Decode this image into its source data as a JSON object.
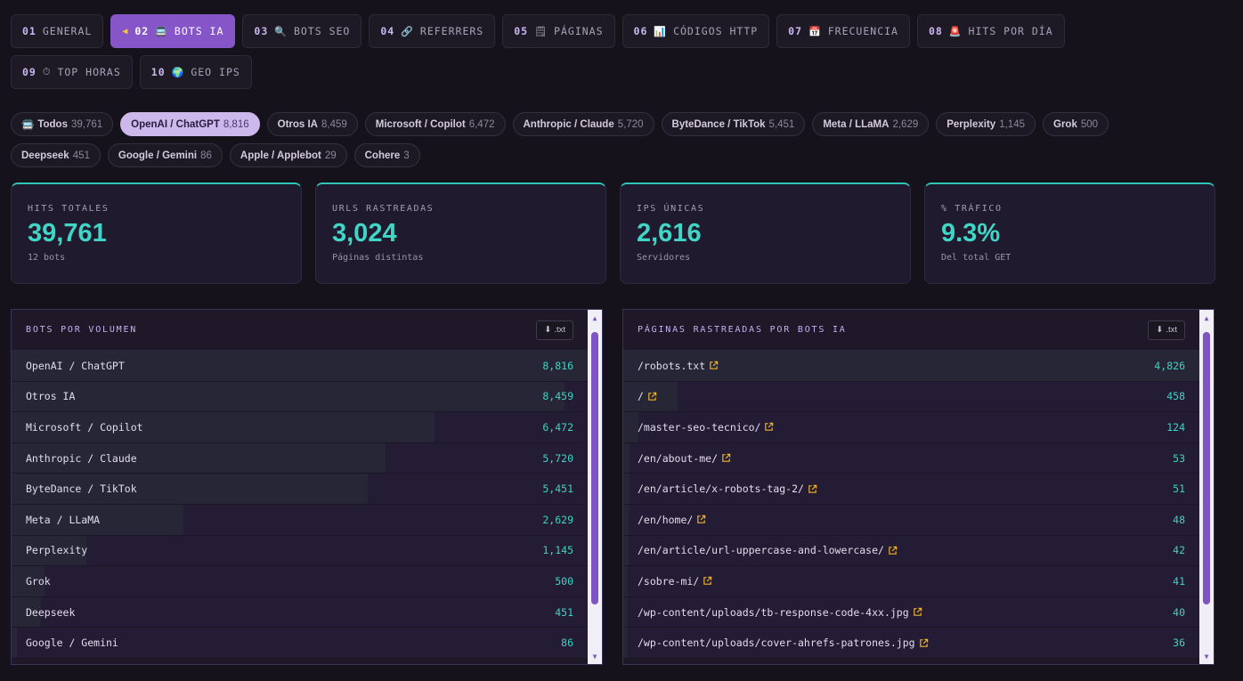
{
  "tabs": [
    {
      "num": "01",
      "icon": "",
      "label": "GENERAL",
      "active": false
    },
    {
      "num": "02",
      "icon": "🚍",
      "label": "BOTS IA",
      "active": true,
      "arrow": "◀"
    },
    {
      "num": "03",
      "icon": "🔍",
      "label": "BOTS SEO",
      "active": false
    },
    {
      "num": "04",
      "icon": "🔗",
      "label": "REFERRERS",
      "active": false
    },
    {
      "num": "05",
      "icon": "🗒",
      "label": "PÁGINAS",
      "active": false
    },
    {
      "num": "06",
      "icon": "📊",
      "label": "CÓDIGOS HTTP",
      "active": false
    },
    {
      "num": "07",
      "icon": "📅",
      "label": "FRECUENCIA",
      "active": false
    },
    {
      "num": "08",
      "icon": "🚨",
      "label": "HITS POR DÍA",
      "active": false
    },
    {
      "num": "09",
      "icon": "⏱",
      "label": "TOP HORAS",
      "active": false
    },
    {
      "num": "10",
      "icon": "🌍",
      "label": "GEO IPS",
      "active": false
    }
  ],
  "filters": [
    {
      "icon": "🚍",
      "label": "Todos",
      "count": "39,761",
      "active": false
    },
    {
      "label": "OpenAI / ChatGPT",
      "count": "8,816",
      "active": true
    },
    {
      "label": "Otros IA",
      "count": "8,459",
      "active": false
    },
    {
      "label": "Microsoft / Copilot",
      "count": "6,472",
      "active": false
    },
    {
      "label": "Anthropic / Claude",
      "count": "5,720",
      "active": false
    },
    {
      "label": "ByteDance / TikTok",
      "count": "5,451",
      "active": false
    },
    {
      "label": "Meta / LLaMA",
      "count": "2,629",
      "active": false
    },
    {
      "label": "Perplexity",
      "count": "1,145",
      "active": false
    },
    {
      "label": "Grok",
      "count": "500",
      "active": false
    },
    {
      "label": "Deepseek",
      "count": "451",
      "active": false
    },
    {
      "label": "Google / Gemini",
      "count": "86",
      "active": false
    },
    {
      "label": "Apple / Applebot",
      "count": "29",
      "active": false
    },
    {
      "label": "Cohere",
      "count": "3",
      "active": false
    }
  ],
  "stats": [
    {
      "label": "HITS TOTALES",
      "value": "39,761",
      "sub": "12 bots"
    },
    {
      "label": "URLS RASTREADAS",
      "value": "3,024",
      "sub": "Páginas distintas"
    },
    {
      "label": "IPS ÚNICAS",
      "value": "2,616",
      "sub": "Servidores"
    },
    {
      "label": "% TRÁFICO",
      "value": "9.3%",
      "sub": "Del total GET"
    }
  ],
  "bots_panel": {
    "title": "BOTS POR VOLUMEN",
    "download_label": ".txt",
    "download_icon": "⬇",
    "rows": [
      {
        "name": "OpenAI / ChatGPT",
        "count": "8,816",
        "share": 1.0
      },
      {
        "name": "Otros IA",
        "count": "8,459",
        "share": 0.96
      },
      {
        "name": "Microsoft / Copilot",
        "count": "6,472",
        "share": 0.734
      },
      {
        "name": "Anthropic / Claude",
        "count": "5,720",
        "share": 0.649
      },
      {
        "name": "ByteDance / TikTok",
        "count": "5,451",
        "share": 0.618
      },
      {
        "name": "Meta / LLaMA",
        "count": "2,629",
        "share": 0.298
      },
      {
        "name": "Perplexity",
        "count": "1,145",
        "share": 0.13
      },
      {
        "name": "Grok",
        "count": "500",
        "share": 0.057
      },
      {
        "name": "Deepseek",
        "count": "451",
        "share": 0.051
      },
      {
        "name": "Google / Gemini",
        "count": "86",
        "share": 0.01
      }
    ],
    "scroll": {
      "thumb_start": 0.02,
      "thumb_size": 0.85
    }
  },
  "pages_panel": {
    "title": "PÁGINAS RASTREADAS POR BOTS IA",
    "download_label": ".txt",
    "download_icon": "⬇",
    "rows": [
      {
        "name": "/robots.txt",
        "count": "4,826",
        "share": 1.0
      },
      {
        "name": "/",
        "count": "458",
        "share": 0.095
      },
      {
        "name": "/master-seo-tecnico/",
        "count": "124",
        "share": 0.026
      },
      {
        "name": "/en/about-me/",
        "count": "53",
        "share": 0.011
      },
      {
        "name": "/en/article/x-robots-tag-2/",
        "count": "51",
        "share": 0.011
      },
      {
        "name": "/en/home/",
        "count": "48",
        "share": 0.01
      },
      {
        "name": "/en/article/url-uppercase-and-lowercase/",
        "count": "42",
        "share": 0.009
      },
      {
        "name": "/sobre-mi/",
        "count": "41",
        "share": 0.008
      },
      {
        "name": "/wp-content/uploads/tb-response-code-4xx.jpg",
        "count": "40",
        "share": 0.008
      },
      {
        "name": "/wp-content/uploads/cover-ahrefs-patrones.jpg",
        "count": "36",
        "share": 0.007
      }
    ],
    "scroll": {
      "thumb_start": 0.02,
      "thumb_size": 0.85
    }
  },
  "colors": {
    "accent": "#8656c8",
    "value": "#3fd6c7",
    "external_link": "#f0b429"
  }
}
